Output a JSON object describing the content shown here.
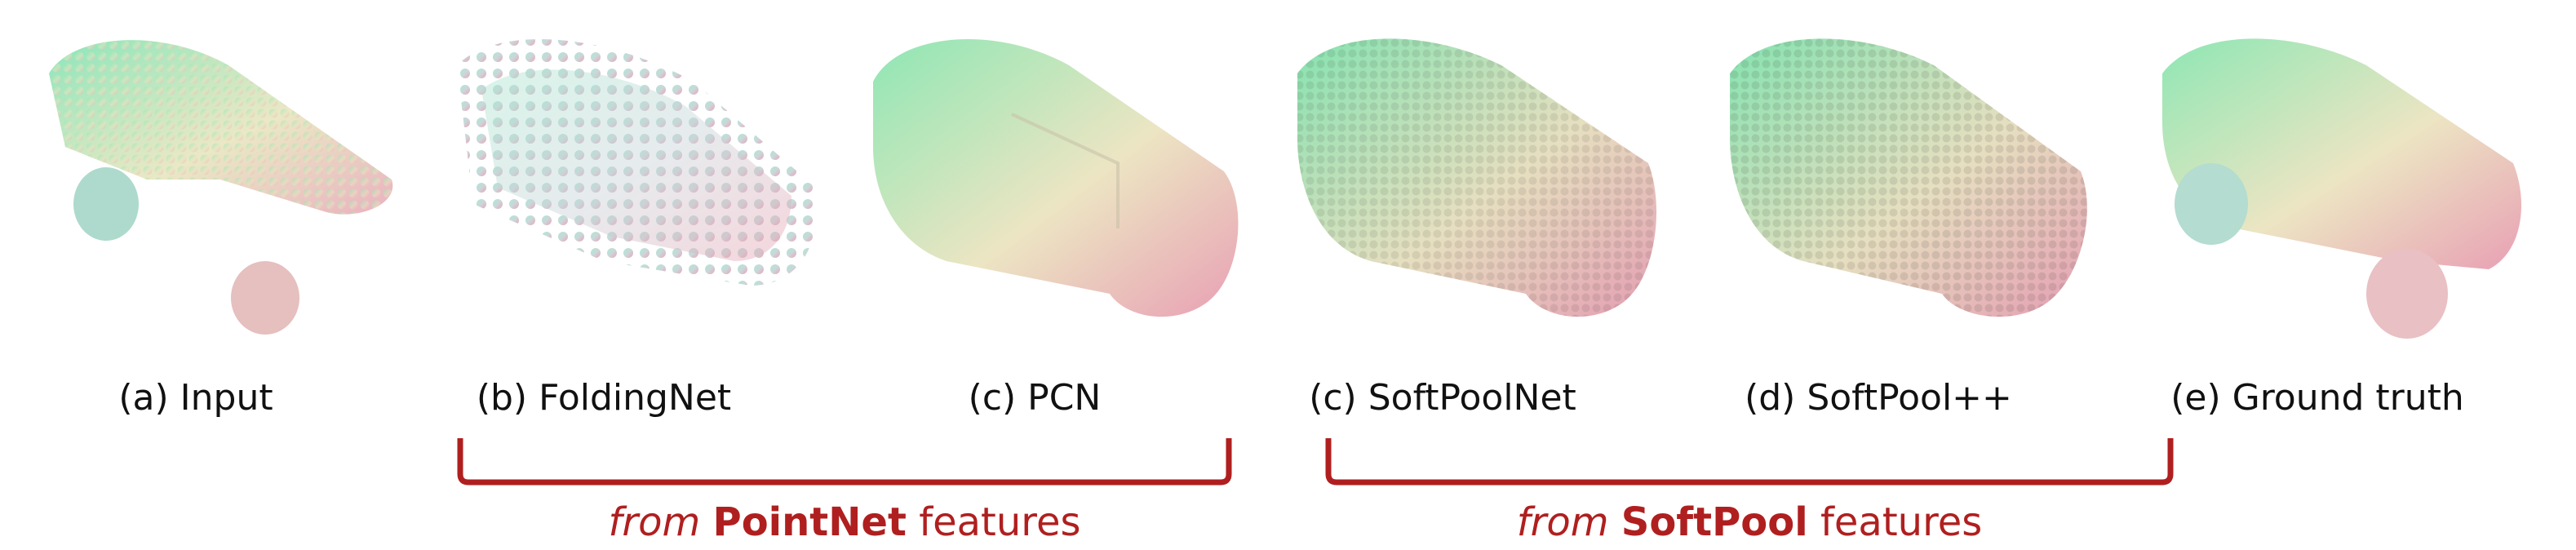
{
  "panels": [
    {
      "caption": "(a) Input",
      "style": "sparse",
      "scene": "car point cloud with missing regions"
    },
    {
      "caption": "(b) FoldingNet",
      "style": "folding",
      "scene": "car point cloud completion"
    },
    {
      "caption": "(c) PCN",
      "style": "smooth",
      "scene": "car point cloud completion"
    },
    {
      "caption": "(c) SoftPoolNet",
      "style": "dense",
      "scene": "car point cloud completion"
    },
    {
      "caption": "(d) SoftPool++",
      "style": "dense",
      "scene": "car point cloud completion"
    },
    {
      "caption": "(e) Ground truth",
      "style": "gt",
      "scene": "car point cloud"
    }
  ],
  "groups": [
    {
      "prefix": "from",
      "method": "PointNet",
      "suffix": "features"
    },
    {
      "prefix": "from",
      "method": "SoftPool",
      "suffix": "features"
    }
  ],
  "colors": {
    "bracket": "#b01f1f",
    "point_gradient": [
      "#7fe3b3",
      "#e6e6c0",
      "#e8a8b8"
    ]
  }
}
